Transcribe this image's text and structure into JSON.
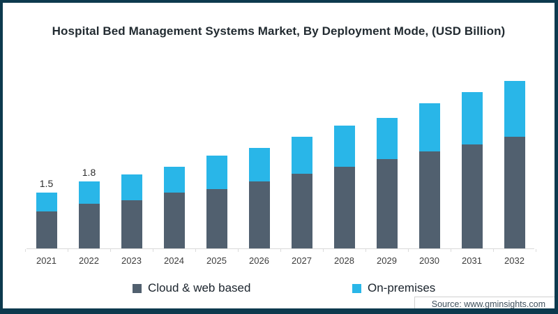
{
  "frame": {
    "border_color": "#0d3a4e"
  },
  "title": "Hospital Bed Management Systems Market, By Deployment Mode, (USD Billion)",
  "source": {
    "label": "Source: www.gminsights.com"
  },
  "legend": {
    "items": [
      {
        "label": "Cloud & web based",
        "color": "#51606f"
      },
      {
        "label": "On-premises",
        "color": "#29b6e8"
      }
    ]
  },
  "chart_data": {
    "type": "bar",
    "stacked": true,
    "title": "Hospital Bed Management Systems Market, By Deployment Mode, (USD Billion)",
    "categories": [
      "2021",
      "2022",
      "2023",
      "2024",
      "2025",
      "2026",
      "2027",
      "2028",
      "2029",
      "2030",
      "2031",
      "2032"
    ],
    "series": [
      {
        "name": "Cloud & web based",
        "color": "#51606f",
        "values": [
          1.0,
          1.2,
          1.3,
          1.5,
          1.6,
          1.8,
          2.0,
          2.2,
          2.4,
          2.6,
          2.8,
          3.0
        ]
      },
      {
        "name": "On-premises",
        "color": "#29b6e8",
        "values": [
          0.5,
          0.6,
          0.7,
          0.7,
          0.9,
          0.9,
          1.0,
          1.1,
          1.1,
          1.3,
          1.4,
          1.5
        ]
      }
    ],
    "totals": [
      1.5,
      1.8,
      2.0,
      2.2,
      2.5,
      2.7,
      3.0,
      3.3,
      3.5,
      3.9,
      4.2,
      4.5
    ],
    "bar_labels": [
      "1.5",
      "1.8",
      "",
      "",
      "",
      "",
      "",
      "",
      "",
      "",
      "",
      ""
    ],
    "xlabel": "",
    "ylabel": "",
    "ylim": [
      0,
      4.8
    ],
    "grid": false,
    "y_axis_visible": false,
    "legend_position": "bottom",
    "axis_color": "#d9d9d9",
    "x_label_color": "#3c3c3c",
    "bar_label_color": "#2d2d2d"
  }
}
